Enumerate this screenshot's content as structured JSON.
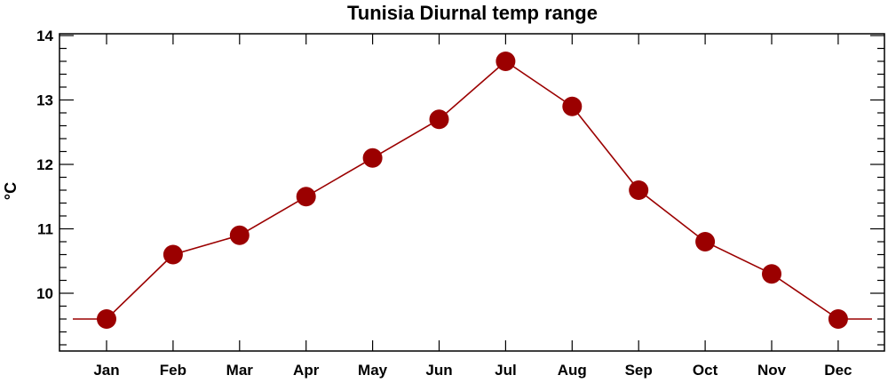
{
  "chart_data": {
    "type": "line",
    "title": "Tunisia Diurnal temp range",
    "xlabel": "",
    "ylabel": "°C",
    "categories": [
      "Jan",
      "Feb",
      "Mar",
      "Apr",
      "May",
      "Jun",
      "Jul",
      "Aug",
      "Sep",
      "Oct",
      "Nov",
      "Dec"
    ],
    "series": [
      {
        "values": [
          9.6,
          10.6,
          10.9,
          11.5,
          12.1,
          12.7,
          13.6,
          12.9,
          11.6,
          10.8,
          10.3,
          9.6
        ]
      }
    ],
    "yticks": [
      10,
      11,
      12,
      13,
      14
    ],
    "ylim": [
      9.0,
      14.1
    ],
    "grid": false,
    "legend": "none",
    "colors": {
      "series": "#9b0000",
      "axis": "#000000"
    }
  }
}
